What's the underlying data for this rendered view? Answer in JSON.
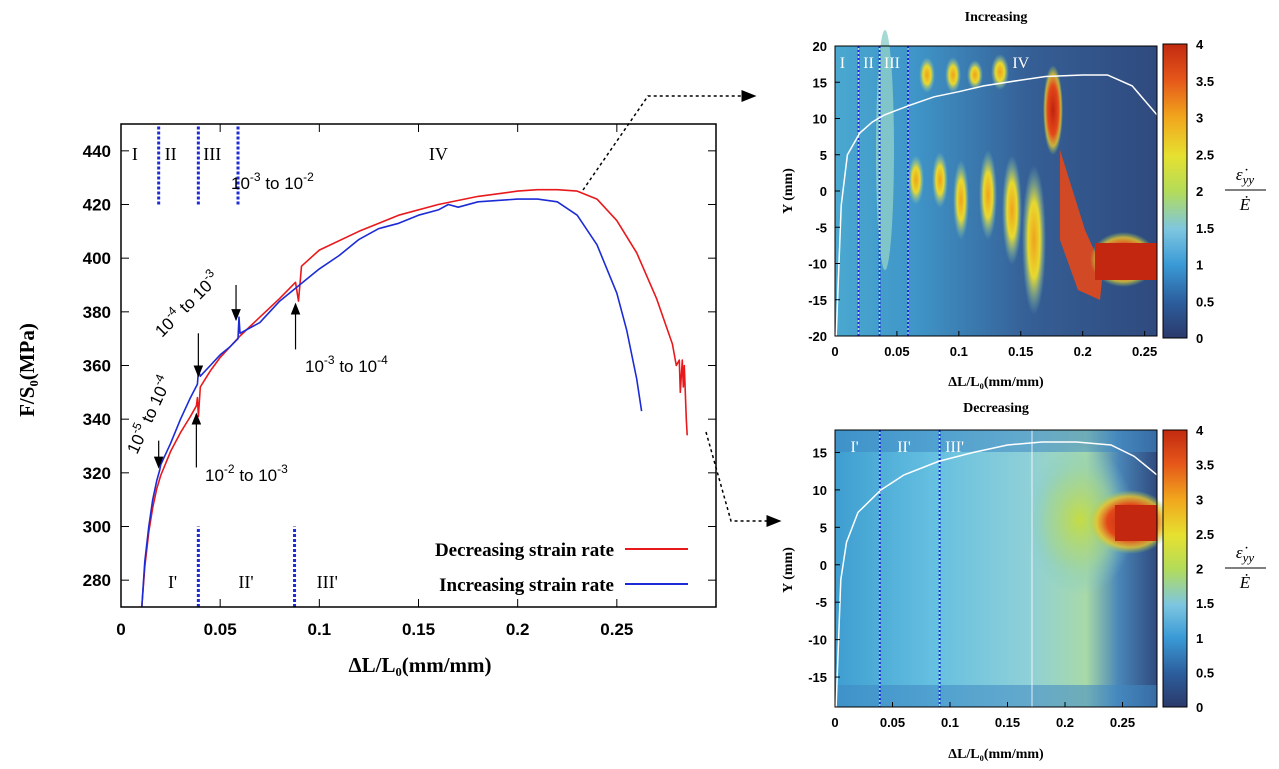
{
  "chart_data": [
    {
      "type": "line",
      "xlabel": "ΔL/L₀(mm/mm)",
      "ylabel": "F/S₀(MPa)",
      "xlim": [
        0,
        0.3
      ],
      "ylim": [
        270,
        450
      ],
      "xticks": [
        "0",
        "0.05",
        "0.1",
        "0.15",
        "0.2",
        "0.25"
      ],
      "yticks": [
        "280",
        "300",
        "320",
        "340",
        "360",
        "380",
        "400",
        "420",
        "440"
      ],
      "legend_position": "bottom-right",
      "series": [
        {
          "name": "Decreasing strain rate",
          "color": "#e8191c",
          "points": [
            [
              0.0105,
              270
            ],
            [
              0.012,
              285
            ],
            [
              0.014,
              298
            ],
            [
              0.016,
              307
            ],
            [
              0.018,
              314
            ],
            [
              0.02,
              319
            ],
            [
              0.025,
              328
            ],
            [
              0.03,
              335
            ],
            [
              0.035,
              341
            ],
            [
              0.038,
              345
            ],
            [
              0.0385,
              348
            ],
            [
              0.039,
              341
            ],
            [
              0.04,
              352
            ],
            [
              0.045,
              358
            ],
            [
              0.05,
              363
            ],
            [
              0.06,
              371
            ],
            [
              0.07,
              378
            ],
            [
              0.08,
              385
            ],
            [
              0.088,
              391
            ],
            [
              0.0895,
              384
            ],
            [
              0.091,
              397
            ],
            [
              0.1,
              403
            ],
            [
              0.12,
              410
            ],
            [
              0.14,
              416
            ],
            [
              0.16,
              420
            ],
            [
              0.18,
              423
            ],
            [
              0.2,
              425
            ],
            [
              0.21,
              425.5
            ],
            [
              0.22,
              425.5
            ],
            [
              0.23,
              425
            ],
            [
              0.24,
              422
            ],
            [
              0.25,
              414
            ],
            [
              0.26,
              402
            ],
            [
              0.27,
              385
            ],
            [
              0.278,
              368
            ],
            [
              0.28,
              360
            ],
            [
              0.2815,
              362
            ],
            [
              0.282,
              350
            ],
            [
              0.283,
              362
            ],
            [
              0.2835,
              352
            ],
            [
              0.284,
              360
            ],
            [
              0.285,
              340
            ],
            [
              0.2855,
              334
            ]
          ]
        },
        {
          "name": "Increasing strain rate",
          "color": "#1c2bd6",
          "points": [
            [
              0.0105,
              270
            ],
            [
              0.012,
              287
            ],
            [
              0.014,
              300
            ],
            [
              0.016,
              310
            ],
            [
              0.018,
              317
            ],
            [
              0.0195,
              321
            ],
            [
              0.02,
              323
            ],
            [
              0.025,
              331
            ],
            [
              0.03,
              340
            ],
            [
              0.035,
              348
            ],
            [
              0.0385,
              353
            ],
            [
              0.039,
              358
            ],
            [
              0.04,
              356
            ],
            [
              0.045,
              360
            ],
            [
              0.05,
              364
            ],
            [
              0.055,
              367
            ],
            [
              0.059,
              370
            ],
            [
              0.0595,
              378
            ],
            [
              0.06,
              372
            ],
            [
              0.07,
              376
            ],
            [
              0.08,
              384
            ],
            [
              0.09,
              390
            ],
            [
              0.1,
              396
            ],
            [
              0.11,
              401
            ],
            [
              0.12,
              407
            ],
            [
              0.13,
              411
            ],
            [
              0.14,
              413
            ],
            [
              0.15,
              416
            ],
            [
              0.16,
              418
            ],
            [
              0.165,
              420
            ],
            [
              0.17,
              419
            ],
            [
              0.18,
              421
            ],
            [
              0.2,
              422
            ],
            [
              0.21,
              422
            ],
            [
              0.22,
              421
            ],
            [
              0.23,
              416
            ],
            [
              0.24,
              405
            ],
            [
              0.25,
              387
            ],
            [
              0.255,
              373
            ],
            [
              0.26,
              355
            ],
            [
              0.2625,
              343
            ]
          ]
        }
      ],
      "vertical_markers": [
        {
          "x": 0.019,
          "y_range": [
            420,
            450
          ]
        },
        {
          "x": 0.039,
          "y_range": [
            420,
            450
          ]
        },
        {
          "x": 0.059,
          "y_range": [
            420,
            450
          ]
        },
        {
          "x": 0.039,
          "y_range": [
            270,
            300
          ]
        },
        {
          "x": 0.0875,
          "y_range": [
            270,
            300
          ]
        }
      ],
      "regions_top": [
        {
          "x": 0.007,
          "label": "I"
        },
        {
          "x": 0.025,
          "label": "II"
        },
        {
          "x": 0.046,
          "label": "III"
        },
        {
          "x": 0.16,
          "label": "IV"
        }
      ],
      "regions_bottom": [
        {
          "x": 0.026,
          "label": "I'"
        },
        {
          "x": 0.063,
          "label": "II'"
        },
        {
          "x": 0.104,
          "label": "III'"
        }
      ],
      "annotations": [
        {
          "base": "10",
          "exp1": "-5",
          "mid": " to 10",
          "exp2": "-4",
          "x": 0.019,
          "y": 322,
          "arrow": "down"
        },
        {
          "base": "10",
          "exp1": "-4",
          "mid": " to 10",
          "exp2": "-3",
          "x": 0.039,
          "y": 356,
          "arrow": "down"
        },
        {
          "base": "10",
          "exp1": "-3",
          "mid": " to 10",
          "exp2": "-2",
          "x": 0.058,
          "y": 377,
          "arrow": "down"
        },
        {
          "base": "10",
          "exp1": "-3",
          "mid": " to 10",
          "exp2": "-4",
          "x": 0.088,
          "y": 383,
          "arrow": "up"
        },
        {
          "base": "10",
          "exp1": "-2",
          "mid": " to 10",
          "exp2": "-3",
          "x": 0.038,
          "y": 342,
          "arrow": "up"
        }
      ]
    },
    {
      "type": "heatmap",
      "title": "Increasing",
      "xlabel": "ΔL/L₀(mm/mm)",
      "ylabel": "Y (mm)",
      "xlim": [
        0,
        0.26
      ],
      "ylim": [
        -20,
        20
      ],
      "xticks": [
        "0",
        "0.05",
        "0.1",
        "0.15",
        "0.2",
        "0.25"
      ],
      "yticks": [
        "-20",
        "-15",
        "-10",
        "-5",
        "0",
        "5",
        "10",
        "15",
        "20"
      ],
      "colorbar_ticks": [
        "0",
        "0.5",
        "1",
        "1.5",
        "2",
        "2.5",
        "3",
        "3.5",
        "4"
      ],
      "colorbar_label": "ε̇yy / Ė",
      "region_lines": [
        0.019,
        0.036,
        0.059
      ],
      "regions": [
        {
          "x": 0.006,
          "label": "I"
        },
        {
          "x": 0.027,
          "label": "II"
        },
        {
          "x": 0.046,
          "label": "III"
        },
        {
          "x": 0.15,
          "label": "IV"
        }
      ]
    },
    {
      "type": "heatmap",
      "title": "Decreasing",
      "xlabel": "ΔL/L₀(mm/mm)",
      "ylabel": "Y (mm)",
      "xlim": [
        0,
        0.28
      ],
      "ylim": [
        -19,
        18
      ],
      "xticks": [
        "0",
        "0.05",
        "0.1",
        "0.15",
        "0.2",
        "0.25"
      ],
      "yticks": [
        "-15",
        "-10",
        "-5",
        "0",
        "5",
        "10",
        "15"
      ],
      "colorbar_ticks": [
        "0",
        "0.5",
        "1",
        "1.5",
        "2",
        "2.5",
        "3",
        "3.5",
        "4"
      ],
      "colorbar_label": "ε̇yy / Ė",
      "region_lines": [
        0.039,
        0.091
      ],
      "regions": [
        {
          "x": 0.017,
          "label": "I'"
        },
        {
          "x": 0.06,
          "label": "II'"
        },
        {
          "x": 0.104,
          "label": "III'"
        }
      ]
    }
  ]
}
